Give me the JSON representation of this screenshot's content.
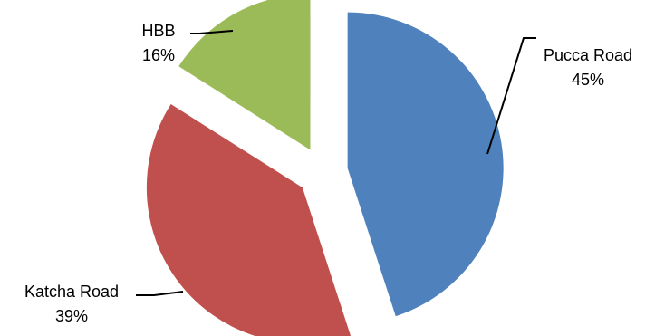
{
  "chart_data": {
    "type": "pie",
    "title": "",
    "exploded": true,
    "legend": "none",
    "slices": [
      {
        "name": "Pucca Road",
        "value": 45,
        "label": "45%",
        "color": "#4f81bd"
      },
      {
        "name": "Katcha Road",
        "value": 39,
        "label": "39%",
        "color": "#c0504d"
      },
      {
        "name": "HBB",
        "value": 16,
        "label": "16%",
        "color": "#9bbb59"
      }
    ]
  }
}
